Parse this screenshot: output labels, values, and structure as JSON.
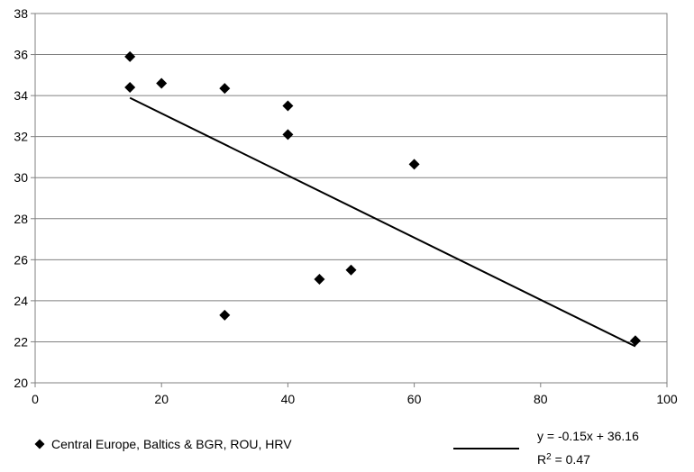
{
  "chart_data": {
    "type": "scatter",
    "xlim": [
      0,
      100
    ],
    "ylim": [
      20,
      38
    ],
    "x_ticks": [
      0,
      20,
      40,
      60,
      80,
      100
    ],
    "y_ticks": [
      20,
      22,
      24,
      26,
      28,
      30,
      32,
      34,
      36,
      38
    ],
    "grid": "horizontal",
    "legend_position": "bottom",
    "marker": "diamond",
    "colors": {
      "points": "#000000",
      "trendline": "#000000",
      "gridline": "#808080",
      "frame": "#808080"
    },
    "series": [
      {
        "name": "Central Europe, Baltics & BGR, ROU, HRV",
        "points": [
          {
            "x": 15,
            "y": 35.9
          },
          {
            "x": 15,
            "y": 34.4
          },
          {
            "x": 20,
            "y": 34.6
          },
          {
            "x": 30,
            "y": 34.35
          },
          {
            "x": 30,
            "y": 23.3
          },
          {
            "x": 40,
            "y": 33.5
          },
          {
            "x": 40,
            "y": 32.1
          },
          {
            "x": 45,
            "y": 25.05
          },
          {
            "x": 50,
            "y": 25.5
          },
          {
            "x": 60,
            "y": 30.65
          },
          {
            "x": 95,
            "y": 22.05
          }
        ]
      }
    ],
    "trendline": {
      "slope": -0.1514,
      "intercept": 36.16,
      "x_range": [
        15,
        95
      ],
      "equation_label": "y = -0.15x + 36.16",
      "r2_label": {
        "prefix": "R",
        "superscript": "2",
        "suffix": " = 0.47"
      }
    }
  }
}
